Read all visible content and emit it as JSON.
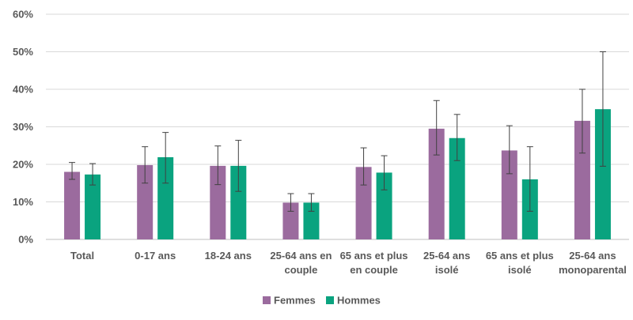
{
  "chart_data": {
    "type": "bar",
    "title": "",
    "xlabel": "",
    "ylabel": "",
    "ylim": [
      0,
      60
    ],
    "yticks": [
      "0%",
      "10%",
      "20%",
      "30%",
      "40%",
      "50%",
      "60%"
    ],
    "ytick_values": [
      0,
      10,
      20,
      30,
      40,
      50,
      60
    ],
    "grid": true,
    "legend_position": "bottom",
    "categories": [
      [
        "Total"
      ],
      [
        "0-17 ans"
      ],
      [
        "18-24 ans"
      ],
      [
        "25-64 ans en",
        "couple"
      ],
      [
        "65 ans et plus",
        "en couple"
      ],
      [
        "25-64 ans",
        "isolé"
      ],
      [
        "65 ans et plus",
        "isolé"
      ],
      [
        "25-64 ans",
        "monoparental"
      ]
    ],
    "series": [
      {
        "name": "Femmes",
        "color": "#9b6b9e",
        "values": [
          18,
          19.8,
          19.6,
          9.8,
          19.3,
          29.5,
          23.7,
          31.6
        ],
        "error_low": [
          16,
          15,
          14.6,
          7.5,
          14.5,
          22.5,
          17.5,
          23
        ],
        "error_high": [
          20.5,
          24.7,
          24.9,
          12.2,
          24.4,
          37,
          30.3,
          40
        ]
      },
      {
        "name": "Hommes",
        "color": "#0aa37f",
        "values": [
          17.3,
          21.9,
          19.6,
          9.8,
          17.8,
          27,
          16,
          34.7
        ],
        "error_low": [
          14.5,
          15,
          12.8,
          7.5,
          13.2,
          21,
          7.5,
          19.5
        ],
        "error_high": [
          20.2,
          28.5,
          26.4,
          12.2,
          22.3,
          33.3,
          24.7,
          50
        ]
      }
    ]
  }
}
